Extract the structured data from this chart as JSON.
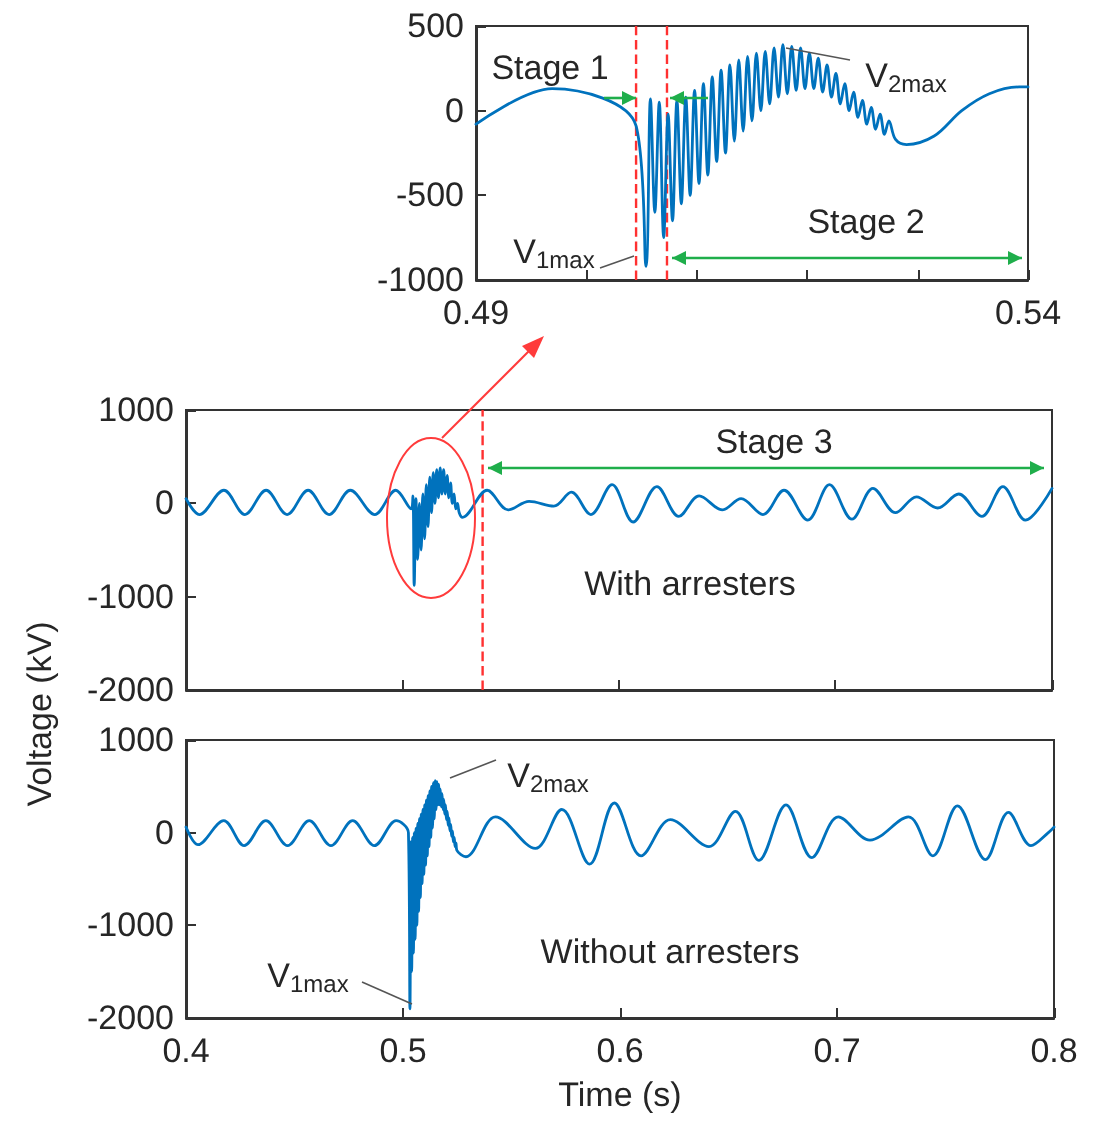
{
  "chart_data": [
    {
      "type": "line",
      "xlim": [
        0.49,
        0.54
      ],
      "ylim": [
        -1000,
        500
      ],
      "xticks": [
        0.49,
        {
          "value": 0.5,
          "label": null
        },
        {
          "value": 0.51,
          "label": null
        },
        {
          "value": 0.52,
          "label": null
        },
        {
          "value": 0.53,
          "label": null
        },
        0.54
      ],
      "yticks": [
        -1000,
        -500,
        0,
        500
      ],
      "series": [
        {
          "color": "#0072bd",
          "x": [
            0.49,
            0.4969,
            0.5045,
            0.5054,
            0.5058,
            0.5062,
            0.5066,
            0.507,
            0.5074,
            0.5078,
            0.5082,
            0.5086,
            0.509,
            0.5094,
            0.5098,
            0.5102,
            0.5106,
            0.511,
            0.5114,
            0.5118,
            0.5122,
            0.5126,
            0.513,
            0.5134,
            0.5138,
            0.5142,
            0.5146,
            0.515,
            0.5154,
            0.5158,
            0.5162,
            0.5166,
            0.517,
            0.5174,
            0.5178,
            0.5182,
            0.5186,
            0.519,
            0.5194,
            0.5198,
            0.5202,
            0.5206,
            0.521,
            0.5214,
            0.5218,
            0.5222,
            0.5226,
            0.523,
            0.5234,
            0.5238,
            0.5242,
            0.5246,
            0.525,
            0.5254,
            0.5258,
            0.5262,
            0.5266,
            0.527,
            0.5274,
            0.528,
            0.529,
            0.5315,
            0.534,
            0.5365,
            0.5392,
            0.54
          ],
          "values": [
            -80,
            130,
            -90,
            -920,
            70,
            -600,
            50,
            -750,
            -20,
            -650,
            60,
            -550,
            80,
            -500,
            120,
            -430,
            160,
            -380,
            200,
            -300,
            240,
            -250,
            270,
            -180,
            300,
            -120,
            320,
            -60,
            340,
            0,
            350,
            40,
            370,
            80,
            390,
            100,
            380,
            120,
            370,
            130,
            340,
            130,
            310,
            110,
            270,
            80,
            220,
            40,
            160,
            0,
            110,
            -40,
            60,
            -80,
            20,
            -110,
            -20,
            -140,
            -60,
            -170,
            -200,
            -150,
            0,
            100,
            140,
            140
          ]
        }
      ],
      "ref_lines": [
        {
          "axis": "x",
          "value": 0.5045,
          "color": "#ff3030",
          "line_style": "dashed"
        },
        {
          "axis": "x",
          "value": 0.5073,
          "color": "#ff3030",
          "line_style": "dashed"
        }
      ],
      "annotations": [
        "Stage 1",
        "Stage 2",
        "V$_{1max}$",
        "V$_{2max}$"
      ]
    },
    {
      "type": "line",
      "xlim": [
        0.4,
        0.8
      ],
      "ylim": [
        -2000,
        1000
      ],
      "tick_labels": "y",
      "xticks": [
        0.4,
        0.5,
        0.6,
        0.7,
        0.8
      ],
      "yticks": [
        -2000,
        -1000,
        0,
        1000
      ],
      "series": [
        {
          "color": "#0072bd",
          "x": [
            0.4,
            0.4062,
            0.4175,
            0.4272,
            0.437,
            0.4467,
            0.4564,
            0.4661,
            0.4759,
            0.4872,
            0.4969,
            0.504,
            0.5048,
            0.5054,
            0.5062,
            0.507,
            0.5078,
            0.5086,
            0.5094,
            0.5102,
            0.511,
            0.5118,
            0.5126,
            0.5134,
            0.5142,
            0.515,
            0.5158,
            0.5166,
            0.5174,
            0.5182,
            0.519,
            0.5198,
            0.5206,
            0.5214,
            0.5222,
            0.523,
            0.5238,
            0.5246,
            0.5254,
            0.5262,
            0.5277,
            0.5391,
            0.5488,
            0.5585,
            0.5699,
            0.578,
            0.587,
            0.5968,
            0.6065,
            0.6175,
            0.6276,
            0.637,
            0.6477,
            0.6564,
            0.6665,
            0.6762,
            0.6872,
            0.6972,
            0.7076,
            0.7173,
            0.7277,
            0.7374,
            0.7472,
            0.7569,
            0.7676,
            0.7773,
            0.7877,
            0.8
          ],
          "values": [
            50,
            -120,
            140,
            -120,
            140,
            -120,
            140,
            -120,
            140,
            -120,
            140,
            -60,
            80,
            -880,
            50,
            -600,
            0,
            -500,
            100,
            -380,
            200,
            -250,
            280,
            -100,
            330,
            0,
            360,
            60,
            380,
            100,
            360,
            100,
            300,
            60,
            220,
            0,
            100,
            -60,
            0,
            -100,
            -150,
            140,
            -70,
            20,
            -30,
            120,
            -120,
            200,
            -200,
            180,
            -140,
            80,
            -70,
            50,
            -120,
            140,
            -180,
            200,
            -170,
            160,
            -100,
            70,
            -50,
            100,
            -140,
            180,
            -180,
            160
          ]
        }
      ],
      "ref_lines": [
        {
          "axis": "x",
          "value": 0.537,
          "color": "#ff3030",
          "line_style": "dashed"
        }
      ],
      "annotations": [
        "Stage 3",
        "With arresters"
      ]
    },
    {
      "type": "line",
      "xlim": [
        0.4,
        0.8
      ],
      "ylim": [
        -2000,
        1000
      ],
      "xlabel": "Time (s)",
      "ylabel": "Voltage (kV)",
      "xticks": [
        0.4,
        0.5,
        0.6,
        0.7,
        0.8
      ],
      "yticks": [
        -2000,
        -1000,
        0,
        1000
      ],
      "series": [
        {
          "color": "#0072bd",
          "x": [
            0.4,
            0.4055,
            0.4174,
            0.4268,
            0.4368,
            0.4468,
            0.4568,
            0.4668,
            0.4768,
            0.4868,
            0.4968,
            0.5025,
            0.5032,
            0.5036,
            0.504,
            0.5044,
            0.5048,
            0.5052,
            0.5056,
            0.506,
            0.5064,
            0.5068,
            0.5072,
            0.5076,
            0.508,
            0.5084,
            0.5088,
            0.5092,
            0.5096,
            0.51,
            0.5104,
            0.5108,
            0.5112,
            0.5116,
            0.512,
            0.5124,
            0.5128,
            0.5132,
            0.5136,
            0.514,
            0.5144,
            0.5148,
            0.5152,
            0.5156,
            0.516,
            0.5164,
            0.5168,
            0.5172,
            0.5176,
            0.518,
            0.5184,
            0.5188,
            0.5192,
            0.5196,
            0.52,
            0.5204,
            0.5208,
            0.5212,
            0.5216,
            0.522,
            0.5224,
            0.5228,
            0.5232,
            0.5236,
            0.524,
            0.5244,
            0.5248,
            0.529,
            0.5426,
            0.561,
            0.5732,
            0.586,
            0.5974,
            0.6097,
            0.6232,
            0.641,
            0.6532,
            0.664,
            0.6765,
            0.6884,
            0.7006,
            0.7152,
            0.7329,
            0.7442,
            0.7555,
            0.7684,
            0.779,
            0.7894,
            0.7974,
            0.8
          ],
          "values": [
            60,
            -130,
            130,
            -140,
            130,
            -140,
            130,
            -140,
            130,
            -140,
            130,
            0,
            -1900,
            -100,
            -1500,
            -50,
            -1300,
            0,
            -1150,
            50,
            -1000,
            100,
            -850,
            150,
            -700,
            200,
            -550,
            250,
            -450,
            300,
            -350,
            350,
            -250,
            400,
            -150,
            450,
            -50,
            500,
            50,
            540,
            150,
            560,
            250,
            550,
            300,
            520,
            300,
            470,
            280,
            420,
            250,
            360,
            200,
            300,
            140,
            230,
            80,
            160,
            20,
            90,
            -40,
            20,
            -100,
            -50,
            -150,
            -110,
            -190,
            -260,
            170,
            -170,
            250,
            -340,
            320,
            -250,
            140,
            -150,
            230,
            -300,
            300,
            -270,
            170,
            -80,
            170,
            -250,
            290,
            -290,
            220,
            -140,
            0,
            60
          ]
        }
      ],
      "annotations": [
        "V$_{2max}$",
        "V$_{1max}$",
        "Without arresters"
      ]
    }
  ]
}
